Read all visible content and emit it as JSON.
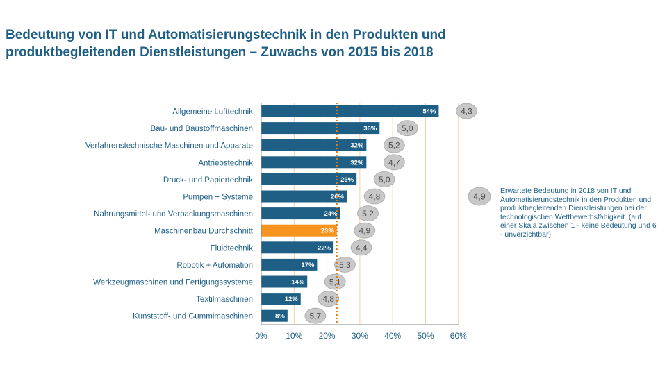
{
  "title_line1": "Bedeutung von IT und Automatisierungstechnik in den Produkten und",
  "title_line2": "produktbegleitenden Dienstleistungen – Zuwachs von 2015 bis 2018",
  "colors": {
    "bar": "#1f5f86",
    "highlight": "#f7941d",
    "bubble": "#c8c8c8",
    "bubble_stroke": "#a6a6a6",
    "text": "#1f5f86",
    "gridline": "#f5cfa6",
    "reference": "#e07b1a"
  },
  "legend": {
    "bubble_value": "4,9",
    "text": "Erwartete Bedeutung in 2018 von IT und Automatisierungstechnik in den Produkten und produktbegleitenden Dienstleistungen bei der technologischen Wettbewerbsfähigkeit. (auf einer Skala zwischen 1 - keine Bedeutung und 6 - unverzichtbar)"
  },
  "chart_data": {
    "type": "bar",
    "orientation": "horizontal",
    "title": "Bedeutung von IT und Automatisierungstechnik in den Produkten und produktbegleitenden Dienstleistungen – Zuwachs von 2015 bis 2018",
    "categories": [
      "Allgemeine Lufttechnik",
      "Bau- und Baustoffmaschinen",
      "Verfahrenstechnische Maschinen und Apparate",
      "Antriebstechnik",
      "Druck- und Papiertechnik",
      "Pumpen + Systeme",
      "Nahrungsmittel- und Verpackungsmaschinen",
      "Maschinenbau Durchschnitt",
      "Fluidtechnik",
      "Robotik + Automation",
      "Werkzeugmaschinen und Fertigungssysteme",
      "Textilmaschinen",
      "Kunststoff- und Gummimaschinen"
    ],
    "values": [
      54,
      36,
      32,
      32,
      29,
      26,
      24,
      23,
      22,
      17,
      14,
      12,
      8
    ],
    "value_labels": [
      "54%",
      "36%",
      "32%",
      "32%",
      "29%",
      "26%",
      "24%",
      "23%",
      "22%",
      "17%",
      "14%",
      "12%",
      "8%"
    ],
    "bubble_values": [
      "4,3",
      "5,0",
      "5,2",
      "4,7",
      "5,0",
      "4,8",
      "5,2",
      "4,9",
      "4,4",
      "5,3",
      "5,1",
      "4,8",
      "5,7"
    ],
    "highlight_index": 7,
    "reference_line": 23,
    "xlim": [
      0,
      60
    ],
    "xticks": [
      0,
      10,
      20,
      30,
      40,
      50,
      60
    ],
    "xtick_labels": [
      "0%",
      "10%",
      "20%",
      "30%",
      "40%",
      "50%",
      "60%"
    ],
    "xlabel": "",
    "ylabel": "",
    "grid": true
  }
}
